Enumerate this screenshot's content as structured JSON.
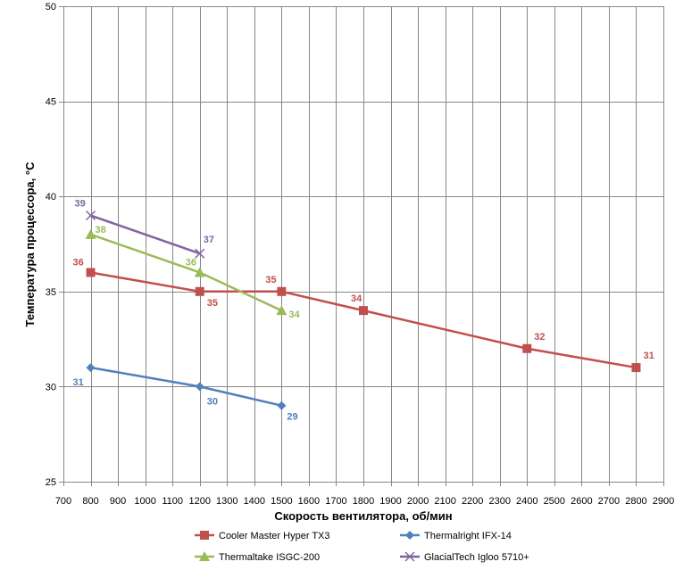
{
  "chart_data": {
    "type": "line",
    "xlabel": "Скорость вентилятора, об/мин",
    "ylabel": "Температура процессора, °C",
    "xlim": [
      700,
      2900
    ],
    "ylim": [
      25,
      50
    ],
    "xticks": [
      700,
      800,
      900,
      1000,
      1100,
      1200,
      1300,
      1400,
      1500,
      1600,
      1700,
      1800,
      1900,
      2000,
      2100,
      2200,
      2300,
      2400,
      2500,
      2600,
      2700,
      2800,
      2900
    ],
    "yticks": [
      25,
      30,
      35,
      40,
      45,
      50
    ],
    "grid": true,
    "legend_position": "bottom",
    "series": [
      {
        "name": "Cooler Master Hyper TX3",
        "color": "#c0504d",
        "marker": "square",
        "x": [
          800,
          1200,
          1500,
          1800,
          2400,
          2800
        ],
        "y": [
          36,
          35,
          35,
          34,
          32,
          31
        ],
        "labels": [
          "36",
          "35",
          "35",
          "34",
          "32",
          "31"
        ]
      },
      {
        "name": "Thermalright IFX-14",
        "color": "#4f81bd",
        "marker": "diamond",
        "x": [
          800,
          1200,
          1500
        ],
        "y": [
          31,
          30,
          29
        ],
        "labels": [
          "31",
          "30",
          "29"
        ]
      },
      {
        "name": "Thermaltake ISGC-200",
        "color": "#9bbb59",
        "marker": "triangle",
        "x": [
          800,
          1200,
          1500
        ],
        "y": [
          38,
          36,
          34
        ],
        "labels": [
          "38",
          "36",
          "34"
        ]
      },
      {
        "name": "GlacialTech Igloo 5710+",
        "color": "#8064a2",
        "marker": "x",
        "x": [
          800,
          1200
        ],
        "y": [
          39,
          37
        ],
        "labels": [
          "39",
          "37"
        ]
      }
    ]
  }
}
